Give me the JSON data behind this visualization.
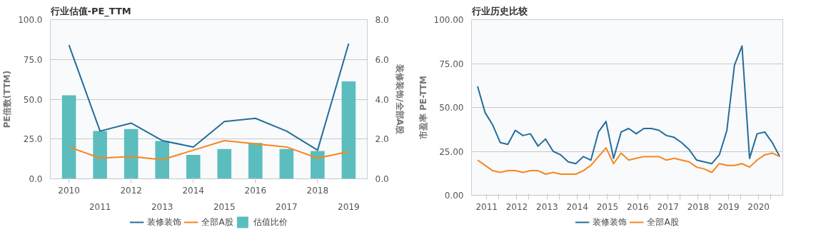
{
  "chart_data": [
    {
      "type": "bar",
      "title": "行业估值-PE_TTM",
      "ylabel": "PE倍数(TTM)",
      "y2label": "装修装饰/全部A股",
      "categories": [
        "2010",
        "2011",
        "2012",
        "2013",
        "2014",
        "2015",
        "2016",
        "2017",
        "2018",
        "2019"
      ],
      "series": [
        {
          "name": "装修装饰",
          "type": "line",
          "color": "#236e9b",
          "values": [
            84,
            30,
            35,
            24,
            20,
            36,
            38,
            30,
            18,
            85
          ]
        },
        {
          "name": "全部A股",
          "type": "line",
          "color": "#f5871f",
          "values": [
            20,
            13,
            14,
            12,
            18,
            24,
            22,
            20,
            13,
            17
          ]
        },
        {
          "name": "估值比价",
          "type": "bar",
          "axis": "y2",
          "color": "#5bbdbd",
          "values": [
            4.2,
            2.4,
            2.5,
            1.9,
            1.2,
            1.5,
            1.8,
            1.5,
            1.4,
            4.9
          ]
        }
      ],
      "ylim": [
        0,
        100
      ],
      "yticks": [
        {
          "value": 0,
          "label": "0.0"
        },
        {
          "value": 25,
          "label": "25.0"
        },
        {
          "value": 50,
          "label": "50.0"
        },
        {
          "value": 75,
          "label": "75.0"
        },
        {
          "value": 100,
          "label": "100.0"
        }
      ],
      "y2lim": [
        0,
        8
      ],
      "y2ticks": [
        {
          "value": 0,
          "label": "0.0"
        },
        {
          "value": 2,
          "label": "2.0"
        },
        {
          "value": 4,
          "label": "4.0"
        },
        {
          "value": 6,
          "label": "6.0"
        },
        {
          "value": 8,
          "label": "8.0"
        }
      ],
      "grid": "y",
      "legend": "bottom"
    },
    {
      "type": "line",
      "title": "行业历史比较",
      "ylabel": "市盈率 PE-TTM",
      "x": [
        2010.7,
        2010.95,
        2011.2,
        2011.45,
        2011.7,
        2011.95,
        2012.2,
        2012.45,
        2012.7,
        2012.95,
        2013.2,
        2013.45,
        2013.7,
        2013.95,
        2014.2,
        2014.45,
        2014.7,
        2014.95,
        2015.2,
        2015.45,
        2015.7,
        2015.95,
        2016.2,
        2016.45,
        2016.7,
        2016.95,
        2017.2,
        2017.45,
        2017.7,
        2017.95,
        2018.2,
        2018.45,
        2018.7,
        2018.95,
        2019.2,
        2019.45,
        2019.7,
        2019.95,
        2020.2,
        2020.45,
        2020.7
      ],
      "series": [
        {
          "name": "装修装饰",
          "color": "#236e9b",
          "values": [
            62,
            47,
            40,
            30,
            29,
            37,
            34,
            35,
            28,
            32,
            25,
            23,
            19,
            18,
            22,
            20,
            36,
            42,
            21,
            36,
            38,
            35,
            38,
            38,
            37,
            34,
            33,
            30,
            26,
            20,
            19,
            18,
            23,
            37,
            74,
            85,
            21,
            35,
            36,
            30,
            22
          ]
        },
        {
          "name": "全部A股",
          "color": "#f5871f",
          "values": [
            20,
            17,
            14,
            13,
            14,
            14,
            13,
            14,
            14,
            12,
            13,
            12,
            12,
            12,
            14,
            17,
            22,
            27,
            18,
            24,
            20,
            21,
            22,
            22,
            22,
            20,
            21,
            20,
            19,
            16,
            15,
            13,
            18,
            17,
            17,
            18,
            16,
            20,
            23,
            24,
            22
          ]
        }
      ],
      "xlim": [
        2010.5,
        2020.8
      ],
      "xticks": [
        2011,
        {
          "value": 2011.4,
          "label": null
        },
        2012,
        {
          "value": 2012.4,
          "label": null
        },
        2013,
        {
          "value": 2013.4,
          "label": null
        },
        2014,
        {
          "value": 2014.4,
          "label": null
        },
        2015,
        {
          "value": 2015.4,
          "label": null
        },
        2016,
        {
          "value": 2016.4,
          "label": null
        },
        2017,
        {
          "value": 2017.4,
          "label": null
        },
        2018,
        {
          "value": 2018.4,
          "label": null
        },
        2019,
        {
          "value": 2019.4,
          "label": null
        },
        2020,
        {
          "value": 2020.4,
          "label": null
        }
      ],
      "ylim": [
        0,
        100
      ],
      "yticks": [
        {
          "value": 0,
          "label": "0.00"
        },
        {
          "value": 25,
          "label": "25.00"
        },
        {
          "value": 50,
          "label": "50.00"
        },
        {
          "value": 75,
          "label": "75.00"
        },
        {
          "value": 100,
          "label": "100.00"
        }
      ],
      "grid": "y",
      "legend": "bottom"
    }
  ]
}
